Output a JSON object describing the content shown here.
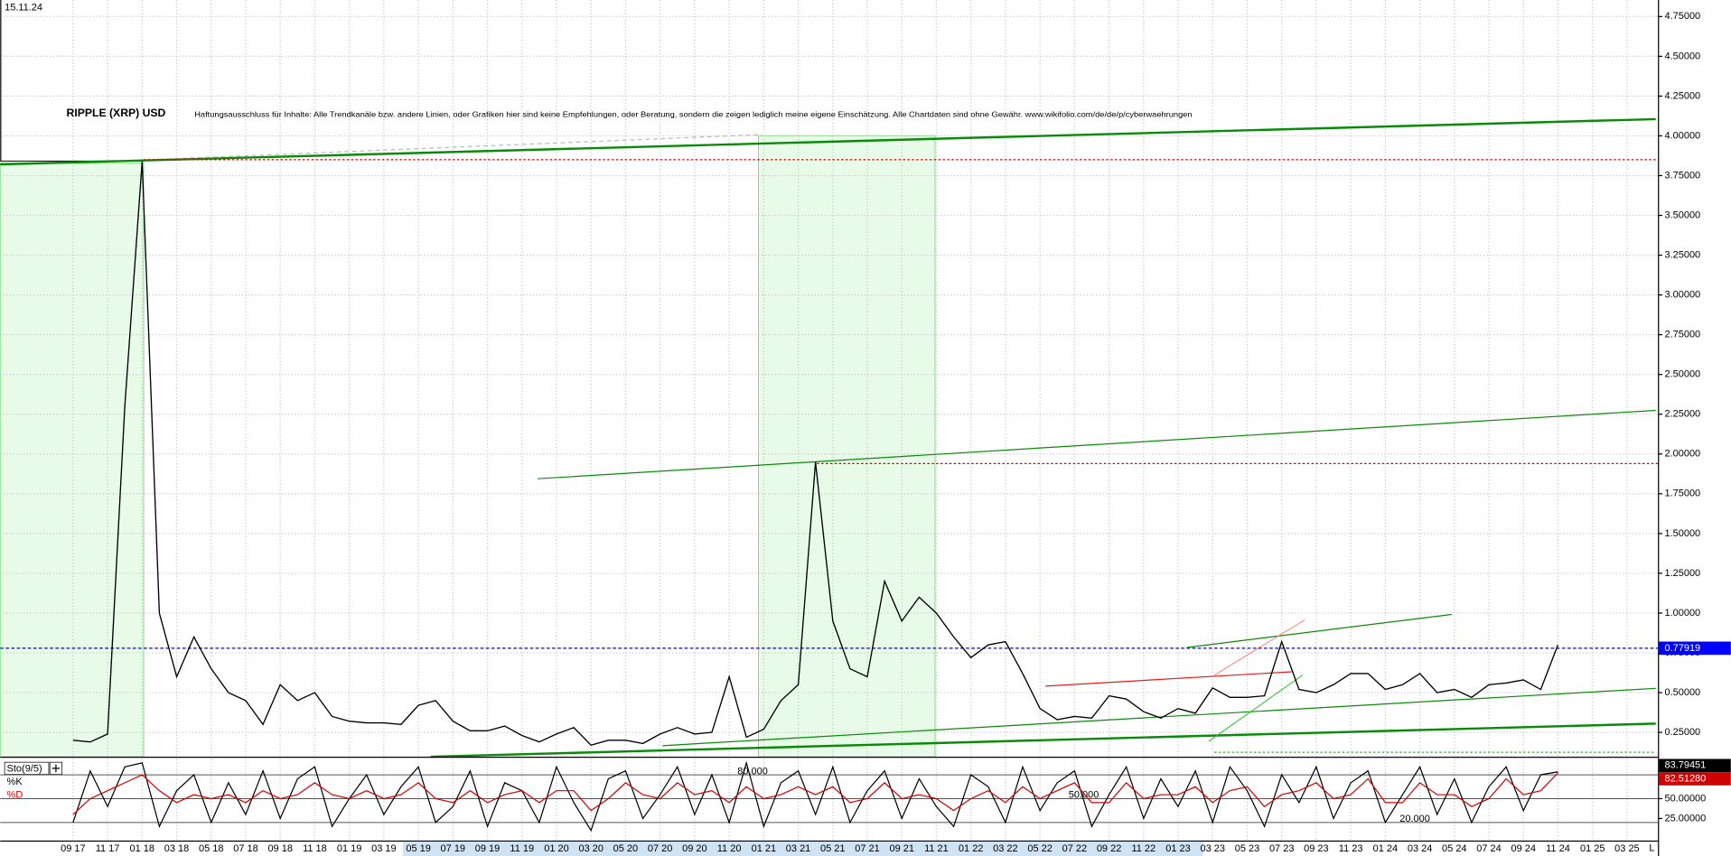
{
  "chart_data": [
    {
      "type": "line",
      "title": "RIPPLE (XRP) USD",
      "subtitle": "Haftungsausschluss für Inhalte: Alle Trendkanäle bzw. andere Linien, oder Grafiken hier sind keine Empfehlungen, oder Beratung, sondern die zeigen lediglich meine eigene Einschätzung. Alle Chartdaten sind ohne Gewähr. www.wikifolio.com/de/de/p/cyberwaehrungen",
      "date": "15.11.24",
      "scale_button": "L",
      "categories": [
        "09 17",
        null,
        "11 17",
        null,
        "01 18",
        null,
        "03 18",
        null,
        "05 18",
        null,
        "07 18",
        null,
        "09 18",
        null,
        "11 18",
        null,
        "01 19",
        null,
        "03 19",
        null,
        "05 19",
        null,
        "07 19",
        null,
        "09 19",
        null,
        "11 19",
        null,
        "01 20",
        null,
        "03 20",
        null,
        "05 20",
        null,
        "07 20",
        null,
        "09 20",
        null,
        "11 20",
        null,
        "01 21",
        null,
        "03 21",
        null,
        "05 21",
        null,
        "07 21",
        null,
        "09 21",
        null,
        "11 21",
        null,
        "01 22",
        null,
        "03 22",
        null,
        "05 22",
        null,
        "07 22",
        null,
        "09 22",
        null,
        "11 22",
        null,
        "01 23",
        null,
        "03 23",
        null,
        "05 23",
        null,
        "07 23",
        null,
        "09 23",
        null,
        "11 23",
        null,
        "01 24",
        null,
        "03 24",
        null,
        "05 24",
        null,
        "07 24",
        null,
        "09 24",
        null,
        "11 24",
        null,
        "01 25",
        null,
        "03 25"
      ],
      "values": [
        0.2,
        0.19,
        0.24,
        2.3,
        3.84,
        1.0,
        0.6,
        0.85,
        0.65,
        0.5,
        0.45,
        0.3,
        0.55,
        0.45,
        0.5,
        0.35,
        0.32,
        0.31,
        0.31,
        0.3,
        0.42,
        0.45,
        0.32,
        0.26,
        0.26,
        0.29,
        0.23,
        0.19,
        0.24,
        0.28,
        0.17,
        0.2,
        0.2,
        0.18,
        0.24,
        0.28,
        0.24,
        0.25,
        0.6,
        0.22,
        0.27,
        0.45,
        0.55,
        1.95,
        0.95,
        0.65,
        0.6,
        1.2,
        0.95,
        1.1,
        1.0,
        0.85,
        0.72,
        0.8,
        0.82,
        0.62,
        0.4,
        0.33,
        0.35,
        0.34,
        0.48,
        0.46,
        0.38,
        0.34,
        0.4,
        0.37,
        0.53,
        0.47,
        0.47,
        0.48,
        0.82,
        0.52,
        0.5,
        0.55,
        0.62,
        0.62,
        0.52,
        0.55,
        0.62,
        0.5,
        0.52,
        0.47,
        0.55,
        0.56,
        0.58,
        0.52,
        0.8,
        null,
        null,
        null,
        null
      ],
      "color": "#000000",
      "current": 0.77919,
      "current_color": "#0000ff",
      "reference_lines": [
        3.85,
        1.94
      ],
      "reference_color": "#d00000",
      "ylim": [
        0.097,
        4.854
      ],
      "yticks": [
        {
          "value": 0.25,
          "label": "0.25000"
        },
        {
          "value": 0.5,
          "label": "0.50000"
        },
        {
          "value": 0.75,
          "label": "0.75000"
        },
        {
          "value": 1.0,
          "label": "1.00000"
        },
        {
          "value": 1.25,
          "label": "1.25000"
        },
        {
          "value": 1.5,
          "label": "1.50000"
        },
        {
          "value": 1.75,
          "label": "1.75000"
        },
        {
          "value": 2.0,
          "label": "2.00000"
        },
        {
          "value": 2.25,
          "label": "2.25000"
        },
        {
          "value": 2.5,
          "label": "2.50000"
        },
        {
          "value": 2.75,
          "label": "2.75000"
        },
        {
          "value": 3.0,
          "label": "3.00000"
        },
        {
          "value": 3.25,
          "label": "3.25000"
        },
        {
          "value": 3.5,
          "label": "3.50000"
        },
        {
          "value": 3.75,
          "label": "3.75000"
        },
        {
          "value": 4.0,
          "label": "4.00000"
        },
        {
          "value": 4.25,
          "label": "4.25000"
        },
        {
          "value": 4.5,
          "label": "4.50000"
        },
        {
          "value": 4.75,
          "label": "4.75000"
        }
      ],
      "grid": true
    },
    {
      "type": "line",
      "title": "Sto(9/5)",
      "series": [
        {
          "name": "%K",
          "color": "#000000",
          "current": 83.79451,
          "values": [
            20,
            85,
            40,
            90,
            95,
            15,
            60,
            80,
            20,
            70,
            30,
            85,
            25,
            75,
            90,
            15,
            50,
            80,
            30,
            65,
            90,
            20,
            40,
            85,
            15,
            70,
            60,
            20,
            90,
            45,
            10,
            75,
            85,
            25,
            55,
            90,
            30,
            80,
            20,
            95,
            15,
            70,
            85,
            30,
            90,
            20,
            60,
            85,
            25,
            75,
            40,
            15,
            80,
            65,
            20,
            90,
            35,
            70,
            85,
            15,
            55,
            90,
            25,
            75,
            40,
            85,
            20,
            90,
            60,
            15,
            80,
            45,
            90,
            25,
            70,
            85,
            20,
            55,
            90,
            30,
            75,
            20,
            65,
            90,
            35,
            80,
            83.79451,
            null,
            null,
            null,
            null
          ]
        },
        {
          "name": "%D",
          "color": "#d00000",
          "current": {
            "value": 82.5128,
            "label": "82.51280"
          },
          "values": [
            30,
            50,
            60,
            70,
            80,
            60,
            45,
            55,
            50,
            55,
            45,
            60,
            50,
            55,
            70,
            55,
            50,
            60,
            50,
            55,
            70,
            50,
            45,
            60,
            45,
            55,
            60,
            45,
            60,
            60,
            35,
            50,
            70,
            55,
            50,
            70,
            55,
            60,
            45,
            65,
            50,
            55,
            65,
            55,
            65,
            45,
            50,
            70,
            50,
            55,
            50,
            35,
            50,
            60,
            45,
            65,
            50,
            60,
            70,
            45,
            45,
            70,
            50,
            55,
            55,
            65,
            45,
            60,
            65,
            40,
            55,
            60,
            70,
            50,
            55,
            75,
            45,
            45,
            70,
            55,
            55,
            40,
            50,
            75,
            55,
            60,
            82.5128,
            null,
            null,
            null,
            null
          ]
        }
      ],
      "levels": [
        {
          "value": 80,
          "label": "80.000"
        },
        {
          "value": 50,
          "label": "50.000"
        },
        {
          "value": 20,
          "label": "20.000"
        }
      ],
      "ylim": [
        -2.8,
        100
      ],
      "yticks": [
        {
          "value": 25,
          "label": "25.00000"
        },
        {
          "value": 50,
          "label": "50.00000"
        }
      ]
    }
  ]
}
